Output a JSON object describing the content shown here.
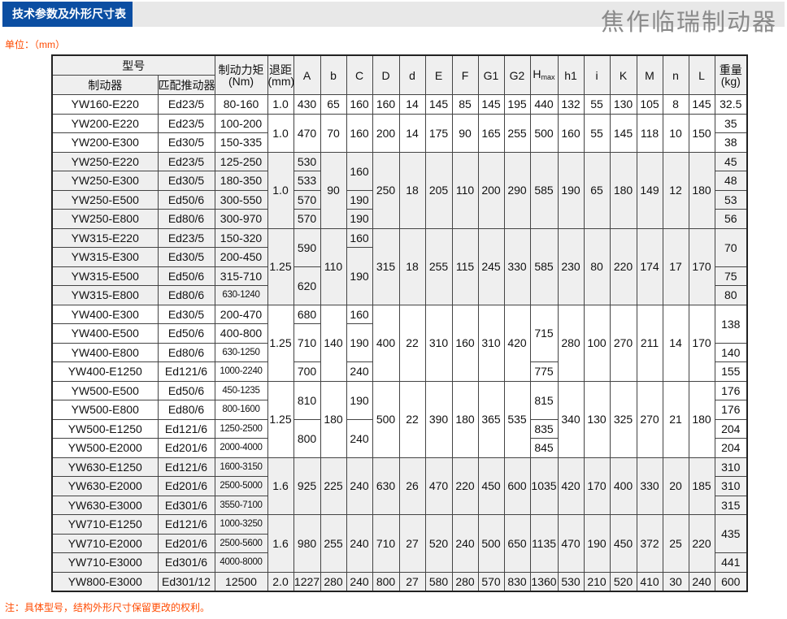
{
  "header": {
    "title": "技术参数及外形尺寸表",
    "brand": "焦作临瑞制动器"
  },
  "unit_label": "单位：（mm）",
  "note": "注：具体型号，结构外形尺寸保留更改的权利。",
  "colors": {
    "title_bg": "#0b4ea2",
    "accent_text": "#ff4a00",
    "shade": "#efefef"
  },
  "table": {
    "headers": {
      "model_group": "型号",
      "brake": "制动器",
      "actuator": "匹配推动器",
      "torque": "制动力矩",
      "torque_unit": "(Nm)",
      "retreat": "退距",
      "retreat_unit": "(mm)",
      "dims": [
        "A",
        "b",
        "C",
        "D",
        "d",
        "E",
        "F",
        "G1",
        "G2"
      ],
      "hmax": "H",
      "hmax_sub": "max",
      "dims2": [
        "h1",
        "i",
        "K",
        "M",
        "n",
        "L"
      ],
      "weight": "重量",
      "weight_unit": "(kg)"
    },
    "rows": [
      {
        "shaded": false,
        "cells": [
          [
            "YW160-E220"
          ],
          [
            "Ed23/5"
          ],
          [
            "80-160"
          ],
          [
            "1.0"
          ],
          [
            "430"
          ],
          [
            "65"
          ],
          [
            "160"
          ],
          [
            "160"
          ],
          [
            "14"
          ],
          [
            "145"
          ],
          [
            "85"
          ],
          [
            "145"
          ],
          [
            "195"
          ],
          [
            "440"
          ],
          [
            "132"
          ],
          [
            "55"
          ],
          [
            "130"
          ],
          [
            "105"
          ],
          [
            "8"
          ],
          [
            "145"
          ],
          [
            "32.5"
          ]
        ]
      },
      {
        "shaded": false,
        "cells": [
          [
            "YW200-E220"
          ],
          [
            "Ed23/5"
          ],
          [
            "100-200"
          ],
          [
            "1.0",
            2
          ],
          [
            "470",
            2
          ],
          [
            "70",
            2
          ],
          [
            "160",
            2
          ],
          [
            "200",
            2
          ],
          [
            "14",
            2
          ],
          [
            "175",
            2
          ],
          [
            "90",
            2
          ],
          [
            "165",
            2
          ],
          [
            "255",
            2
          ],
          [
            "500",
            2
          ],
          [
            "160",
            2
          ],
          [
            "55",
            2
          ],
          [
            "145",
            2
          ],
          [
            "118",
            2
          ],
          [
            "10",
            2
          ],
          [
            "150",
            2
          ],
          [
            "35"
          ]
        ]
      },
      {
        "shaded": false,
        "cells": [
          [
            "YW200-E300"
          ],
          [
            "Ed30/5"
          ],
          [
            "150-335"
          ],
          [
            "38"
          ]
        ]
      },
      {
        "shaded": true,
        "cells": [
          [
            "YW250-E220"
          ],
          [
            "Ed23/5"
          ],
          [
            "125-250"
          ],
          [
            "1.0",
            4
          ],
          [
            "530"
          ],
          [
            "90",
            4
          ],
          [
            "160",
            2
          ],
          [
            "250",
            4
          ],
          [
            "18",
            4
          ],
          [
            "205",
            4
          ],
          [
            "110",
            4
          ],
          [
            "200",
            4
          ],
          [
            "290",
            4
          ],
          [
            "585",
            4
          ],
          [
            "190",
            4
          ],
          [
            "65",
            4
          ],
          [
            "180",
            4
          ],
          [
            "149",
            4
          ],
          [
            "12",
            4
          ],
          [
            "180",
            4
          ],
          [
            "45"
          ]
        ]
      },
      {
        "shaded": true,
        "cells": [
          [
            "YW250-E300"
          ],
          [
            "Ed30/5"
          ],
          [
            "180-350"
          ],
          [
            "533"
          ],
          [
            "48"
          ]
        ]
      },
      {
        "shaded": true,
        "cells": [
          [
            "YW250-E500"
          ],
          [
            "Ed50/6"
          ],
          [
            "300-550"
          ],
          [
            "570"
          ],
          [
            "190"
          ],
          [
            "53"
          ]
        ]
      },
      {
        "shaded": true,
        "cells": [
          [
            "YW250-E800"
          ],
          [
            "Ed80/6"
          ],
          [
            "300-970"
          ],
          [
            "570"
          ],
          [
            "190"
          ],
          [
            "56"
          ]
        ]
      },
      {
        "shaded": true,
        "cells": [
          [
            "YW315-E220"
          ],
          [
            "Ed23/5"
          ],
          [
            "150-320"
          ],
          [
            "1.25",
            4
          ],
          [
            "590",
            2
          ],
          [
            "110",
            4
          ],
          [
            "160"
          ],
          [
            "315",
            4
          ],
          [
            "18",
            4
          ],
          [
            "255",
            4
          ],
          [
            "115",
            4
          ],
          [
            "245",
            4
          ],
          [
            "330",
            4
          ],
          [
            "585",
            4
          ],
          [
            "230",
            4
          ],
          [
            "80",
            4
          ],
          [
            "220",
            4
          ],
          [
            "174",
            4
          ],
          [
            "17",
            4
          ],
          [
            "170",
            4
          ],
          [
            "70",
            2
          ]
        ]
      },
      {
        "shaded": true,
        "cells": [
          [
            "YW315-E300"
          ],
          [
            "Ed30/5"
          ],
          [
            "200-450"
          ],
          [
            "190",
            3
          ]
        ]
      },
      {
        "shaded": true,
        "cells": [
          [
            "YW315-E500"
          ],
          [
            "Ed50/6"
          ],
          [
            "315-710"
          ],
          [
            "620",
            2
          ],
          [
            "75"
          ]
        ]
      },
      {
        "shaded": true,
        "cells": [
          [
            "YW315-E800"
          ],
          [
            "Ed80/6"
          ],
          [
            "630-1240"
          ],
          [
            "80"
          ]
        ]
      },
      {
        "shaded": false,
        "cells": [
          [
            "YW400-E300"
          ],
          [
            "Ed30/5"
          ],
          [
            "200-470"
          ],
          [
            "1.25",
            4
          ],
          [
            "680"
          ],
          [
            "140",
            4
          ],
          [
            "160"
          ],
          [
            "400",
            4
          ],
          [
            "22",
            4
          ],
          [
            "310",
            4
          ],
          [
            "160",
            4
          ],
          [
            "310",
            4
          ],
          [
            "420",
            4
          ],
          [
            "715",
            3
          ],
          [
            "280",
            4
          ],
          [
            "100",
            4
          ],
          [
            "270",
            4
          ],
          [
            "211",
            4
          ],
          [
            "14",
            4
          ],
          [
            "170",
            4
          ],
          [
            "138",
            2
          ]
        ]
      },
      {
        "shaded": false,
        "cells": [
          [
            "YW400-E500"
          ],
          [
            "Ed50/6"
          ],
          [
            "400-800"
          ],
          [
            "710",
            2
          ],
          [
            "190",
            2
          ]
        ]
      },
      {
        "shaded": false,
        "cells": [
          [
            "YW400-E800"
          ],
          [
            "Ed80/6"
          ],
          [
            "630-1250"
          ],
          [
            "140"
          ]
        ]
      },
      {
        "shaded": false,
        "cells": [
          [
            "YW400-E1250"
          ],
          [
            "Ed121/6"
          ],
          [
            "1000-2240"
          ],
          [
            "700"
          ],
          [
            "240"
          ],
          [
            "775"
          ],
          [
            "155"
          ]
        ]
      },
      {
        "shaded": false,
        "cells": [
          [
            "YW500-E500"
          ],
          [
            "Ed50/6"
          ],
          [
            "450-1235"
          ],
          [
            "1.25",
            4
          ],
          [
            "810",
            2
          ],
          [
            "180",
            4
          ],
          [
            "190",
            2
          ],
          [
            "500",
            4
          ],
          [
            "22",
            4
          ],
          [
            "390",
            4
          ],
          [
            "180",
            4
          ],
          [
            "365",
            4
          ],
          [
            "535",
            4
          ],
          [
            "815",
            2
          ],
          [
            "340",
            4
          ],
          [
            "130",
            4
          ],
          [
            "325",
            4
          ],
          [
            "270",
            4
          ],
          [
            "21",
            4
          ],
          [
            "180",
            4
          ],
          [
            "176"
          ]
        ]
      },
      {
        "shaded": false,
        "cells": [
          [
            "YW500-E800"
          ],
          [
            "Ed80/6"
          ],
          [
            "800-1600"
          ],
          [
            "176"
          ]
        ]
      },
      {
        "shaded": false,
        "cells": [
          [
            "YW500-E1250"
          ],
          [
            "Ed121/6"
          ],
          [
            "1250-2500"
          ],
          [
            "800",
            2
          ],
          [
            "240",
            2
          ],
          [
            "835"
          ],
          [
            "204"
          ]
        ]
      },
      {
        "shaded": false,
        "cells": [
          [
            "YW500-E2000"
          ],
          [
            "Ed201/6"
          ],
          [
            "2000-4000"
          ],
          [
            "845"
          ],
          [
            "204"
          ]
        ]
      },
      {
        "shaded": true,
        "cells": [
          [
            "YW630-E1250"
          ],
          [
            "Ed121/6"
          ],
          [
            "1600-3150"
          ],
          [
            "1.6",
            3
          ],
          [
            "925",
            3
          ],
          [
            "225",
            3
          ],
          [
            "240",
            3
          ],
          [
            "630",
            3
          ],
          [
            "26",
            3
          ],
          [
            "470",
            3
          ],
          [
            "220",
            3
          ],
          [
            "450",
            3
          ],
          [
            "600",
            3
          ],
          [
            "1035",
            3
          ],
          [
            "420",
            3
          ],
          [
            "170",
            3
          ],
          [
            "400",
            3
          ],
          [
            "330",
            3
          ],
          [
            "20",
            3
          ],
          [
            "185",
            3
          ],
          [
            "310"
          ]
        ]
      },
      {
        "shaded": true,
        "cells": [
          [
            "YW630-E2000"
          ],
          [
            "Ed201/6"
          ],
          [
            "2500-5000"
          ],
          [
            "310"
          ]
        ]
      },
      {
        "shaded": true,
        "cells": [
          [
            "YW630-E3000"
          ],
          [
            "Ed301/6"
          ],
          [
            "3550-7100"
          ],
          [
            "315"
          ]
        ]
      },
      {
        "shaded": true,
        "cells": [
          [
            "YW710-E1250"
          ],
          [
            "Ed121/6"
          ],
          [
            "1000-3250"
          ],
          [
            "1.6",
            3
          ],
          [
            "980",
            3
          ],
          [
            "255",
            3
          ],
          [
            "240",
            3
          ],
          [
            "710",
            3
          ],
          [
            "27",
            3
          ],
          [
            "520",
            3
          ],
          [
            "240",
            3
          ],
          [
            "500",
            3
          ],
          [
            "650",
            3
          ],
          [
            "1135",
            3
          ],
          [
            "470",
            3
          ],
          [
            "190",
            3
          ],
          [
            "450",
            3
          ],
          [
            "372",
            3
          ],
          [
            "25",
            3
          ],
          [
            "220",
            3
          ],
          [
            "435",
            2
          ]
        ]
      },
      {
        "shaded": true,
        "cells": [
          [
            "YW710-E2000"
          ],
          [
            "Ed201/6"
          ],
          [
            "2500-5600"
          ]
        ]
      },
      {
        "shaded": true,
        "cells": [
          [
            "YW710-E3000"
          ],
          [
            "Ed301/6"
          ],
          [
            "4000-8000"
          ],
          [
            "441"
          ]
        ]
      },
      {
        "shaded": true,
        "cells": [
          [
            "YW800-E3000"
          ],
          [
            "Ed301/12"
          ],
          [
            "12500"
          ],
          [
            "2.0"
          ],
          [
            "1227"
          ],
          [
            "280"
          ],
          [
            "240"
          ],
          [
            "800"
          ],
          [
            "27"
          ],
          [
            "580"
          ],
          [
            "280"
          ],
          [
            "570"
          ],
          [
            "830"
          ],
          [
            "1360"
          ],
          [
            "530"
          ],
          [
            "210"
          ],
          [
            "520"
          ],
          [
            "410"
          ],
          [
            "30"
          ],
          [
            "240"
          ],
          [
            "600"
          ]
        ]
      }
    ]
  }
}
